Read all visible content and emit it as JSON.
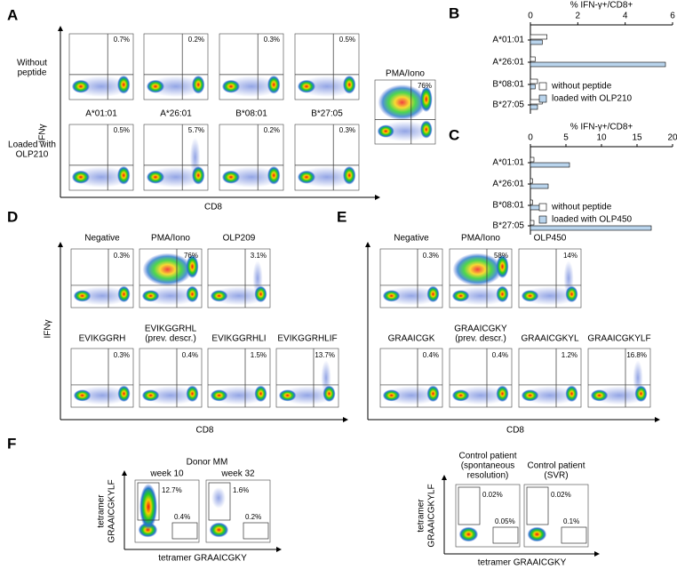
{
  "chart_data": [
    {
      "type": "bar",
      "orientation": "horizontal",
      "x_label": "% IFN-γ+/CD8+",
      "categories": [
        "A*01:01",
        "A*26:01",
        "B*08:01",
        "B*27:05"
      ],
      "series": [
        {
          "name": "without peptide",
          "color": "#ffffff",
          "values": [
            0.7,
            0.2,
            0.3,
            0.5
          ]
        },
        {
          "name": "loaded with OLP210",
          "color": "#b9d4ec",
          "values": [
            0.5,
            5.7,
            0.2,
            0.3
          ]
        }
      ],
      "xlim": [
        0,
        6
      ],
      "xticks": [
        0,
        2,
        4,
        6
      ]
    },
    {
      "type": "bar",
      "orientation": "horizontal",
      "x_label": "% IFN-γ+/CD8+",
      "categories": [
        "A*01:01",
        "A*26:01",
        "B*08:01",
        "B*27:05"
      ],
      "series": [
        {
          "name": "without peptide",
          "color": "#ffffff",
          "values": [
            0.5,
            0.3,
            0.3,
            0.5
          ]
        },
        {
          "name": "loaded with OLP450",
          "color": "#b9d4ec",
          "values": [
            5.5,
            2.5,
            1.3,
            17
          ]
        }
      ],
      "xlim": [
        0,
        20
      ],
      "xticks": [
        0,
        5,
        10,
        15,
        20
      ]
    }
  ],
  "figure": {
    "A": {
      "label": "A",
      "y_label": "IFNγ",
      "x_label": "CD8",
      "row_labels": [
        [
          "Without",
          "peptide"
        ],
        [
          "Loaded with",
          "OLP210"
        ]
      ],
      "columns": [
        "A*01:01",
        "A*26:01",
        "B*08:01",
        "B*27:05"
      ],
      "row1_percents": [
        "0.7%",
        "0.2%",
        "0.3%",
        "0.5%"
      ],
      "row2_percents": [
        "0.5%",
        "5.7%",
        "0.2%",
        "0.3%"
      ],
      "control_title": "PMA/Iono",
      "control_percent": "76%"
    },
    "B": {
      "label": "B"
    },
    "C": {
      "label": "C"
    },
    "D": {
      "label": "D",
      "y_label": "IFNγ",
      "x_label": "CD8",
      "row1": [
        {
          "title": [
            "Negative"
          ],
          "percent": "0.3%"
        },
        {
          "title": [
            "PMA/Iono"
          ],
          "percent": "76%"
        },
        {
          "title": [
            "OLP209"
          ],
          "percent": "3.1%"
        }
      ],
      "row2": [
        {
          "title": [
            "EVIKGGRH"
          ],
          "percent": "0.3%"
        },
        {
          "title": [
            "EVIKGGRHL",
            "(prev. descr.)"
          ],
          "percent": "0.4%"
        },
        {
          "title": [
            "EVIKGGRHLI"
          ],
          "percent": "1.5%"
        },
        {
          "title": [
            "EVIKGGRHLIF"
          ],
          "percent": "13.7%"
        }
      ]
    },
    "E": {
      "label": "E",
      "x_label": "CD8",
      "row1": [
        {
          "title": [
            "Negative"
          ],
          "percent": "0.3%"
        },
        {
          "title": [
            "PMA/Iono"
          ],
          "percent": "58%"
        },
        {
          "title": [
            "OLP450"
          ],
          "percent": "14%"
        }
      ],
      "row2": [
        {
          "title": [
            "GRAAICGK"
          ],
          "percent": "0.4%"
        },
        {
          "title": [
            "GRAAICGKY",
            "(prev. descr.)"
          ],
          "percent": "0.4%"
        },
        {
          "title": [
            "GRAAICGKYL"
          ],
          "percent": "1.2%"
        },
        {
          "title": [
            "GRAAICGKYLF"
          ],
          "percent": "16.8%"
        }
      ]
    },
    "F": {
      "label": "F",
      "donor": "Donor MM",
      "y_label": [
        "tetramer",
        "GRAAICGKYLF"
      ],
      "x_label": "tetramer GRAAICGKY",
      "left_plots": [
        {
          "title": [
            "week 10"
          ],
          "percents": [
            "12.7%",
            "0.4%"
          ]
        },
        {
          "title": [
            "week 32"
          ],
          "percents": [
            "1.6%",
            "0.2%"
          ]
        }
      ],
      "right_plots": [
        {
          "title": [
            "Control patient",
            "(spontaneous",
            "resolution)"
          ],
          "percents": [
            "0.02%",
            "0.05%"
          ]
        },
        {
          "title": [
            "Control patient",
            "(SVR)"
          ],
          "percents": [
            "0.02%",
            "0.1%"
          ]
        }
      ]
    }
  }
}
